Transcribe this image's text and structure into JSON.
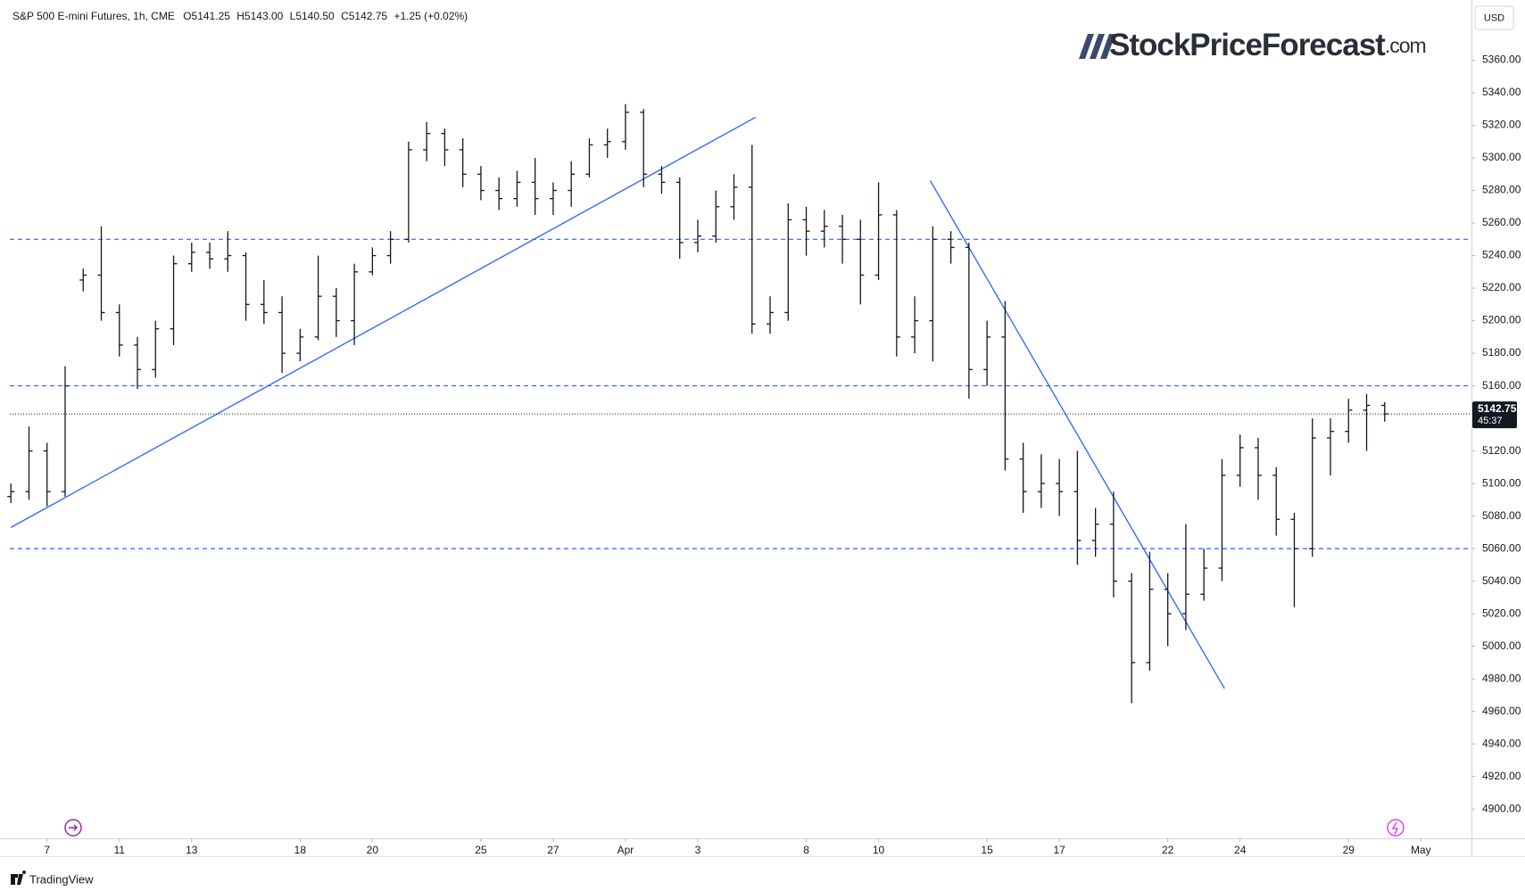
{
  "chart_data": {
    "type": "ohlc",
    "title": "S&P 500 E-mini Futures, 1h, CME",
    "header_values": [
      "O5141.25",
      "H5143.00",
      "L5140.50",
      "C5142.75"
    ],
    "change": "+1.25 (+0.02%)",
    "currency": "USD",
    "watermark": "StockPriceForecast",
    "watermark_suffix": ".com",
    "brand": "TradingView",
    "color": "#131722",
    "line_color": "#2962ff",
    "x": [
      -1,
      -0.5,
      0,
      0.5,
      1,
      1.5,
      2,
      2.5,
      3,
      3.5,
      4,
      4.5,
      5,
      5.5,
      6,
      6.5,
      7,
      7.5,
      8,
      8.5,
      9,
      9.5,
      10,
      10.5,
      11,
      11.5,
      12,
      12.5,
      13,
      13.5,
      14,
      14.5,
      15,
      15.5,
      16,
      16.5,
      17,
      17.5,
      18,
      18.5,
      19,
      19.5,
      20,
      20.5,
      21,
      21.5,
      22,
      22.5,
      23,
      23.5,
      24,
      24.5,
      25,
      25.5,
      26,
      26.5,
      27,
      27.5,
      28,
      28.5,
      29,
      29.5,
      30,
      30.5,
      31,
      31.5,
      32,
      32.5,
      33,
      33.5,
      34,
      34.5,
      35,
      35.5,
      36,
      36.5,
      37
    ],
    "open": [
      5092,
      5095,
      5120,
      5095,
      5225,
      5228,
      5205,
      5185,
      5170,
      5195,
      5235,
      5242,
      5238,
      5240,
      5210,
      5205,
      5180,
      5190,
      5215,
      5200,
      5230,
      5240,
      5250,
      5305,
      5315,
      5305,
      5290,
      5280,
      5275,
      5285,
      5275,
      5280,
      5290,
      5308,
      5310,
      5328,
      5290,
      5285,
      5248,
      5252,
      5270,
      5282,
      5198,
      5205,
      5262,
      5255,
      5258,
      5250,
      5228,
      5265,
      5190,
      5200,
      5250,
      5245,
      5170,
      5190,
      5115,
      5095,
      5100,
      5095,
      5065,
      5075,
      5040,
      4990,
      5035,
      5020,
      5032,
      5048,
      5105,
      5122,
      5105,
      5078,
      5060,
      5128,
      5132,
      5145,
      5148
    ],
    "high": [
      5100,
      5135,
      5125,
      5172,
      5232,
      5258,
      5210,
      5190,
      5200,
      5240,
      5248,
      5248,
      5255,
      5242,
      5225,
      5215,
      5195,
      5240,
      5220,
      5235,
      5245,
      5255,
      5310,
      5322,
      5318,
      5312,
      5295,
      5288,
      5292,
      5300,
      5285,
      5298,
      5312,
      5318,
      5333,
      5330,
      5295,
      5288,
      5262,
      5280,
      5290,
      5308,
      5215,
      5272,
      5270,
      5268,
      5265,
      5262,
      5285,
      5268,
      5215,
      5258,
      5255,
      5248,
      5200,
      5212,
      5125,
      5118,
      5115,
      5120,
      5085,
      5095,
      5045,
      5058,
      5045,
      5075,
      5060,
      5115,
      5130,
      5128,
      5110,
      5082,
      5140,
      5140,
      5152,
      5155,
      5150
    ],
    "low": [
      5088,
      5090,
      5086,
      5092,
      5218,
      5200,
      5178,
      5158,
      5165,
      5185,
      5230,
      5232,
      5230,
      5200,
      5198,
      5168,
      5175,
      5188,
      5190,
      5185,
      5228,
      5235,
      5248,
      5298,
      5295,
      5282,
      5274,
      5268,
      5270,
      5265,
      5265,
      5270,
      5288,
      5300,
      5305,
      5282,
      5278,
      5238,
      5242,
      5248,
      5262,
      5192,
      5192,
      5200,
      5240,
      5245,
      5235,
      5210,
      5225,
      5178,
      5180,
      5175,
      5235,
      5152,
      5160,
      5108,
      5082,
      5085,
      5080,
      5050,
      5055,
      5030,
      4965,
      4985,
      5000,
      5010,
      5028,
      5040,
      5098,
      5090,
      5068,
      5024,
      5055,
      5105,
      5125,
      5120,
      5138
    ],
    "close": [
      5095,
      5120,
      5095,
      5160,
      5228,
      5205,
      5185,
      5170,
      5195,
      5235,
      5242,
      5238,
      5240,
      5210,
      5205,
      5180,
      5190,
      5215,
      5200,
      5230,
      5240,
      5250,
      5305,
      5315,
      5305,
      5290,
      5280,
      5275,
      5285,
      5275,
      5280,
      5290,
      5308,
      5310,
      5328,
      5290,
      5285,
      5248,
      5252,
      5270,
      5282,
      5198,
      5205,
      5262,
      5255,
      5258,
      5250,
      5228,
      5265,
      5190,
      5200,
      5250,
      5245,
      5170,
      5190,
      5115,
      5095,
      5100,
      5095,
      5065,
      5075,
      5040,
      4990,
      5035,
      5020,
      5032,
      5048,
      5105,
      5122,
      5105,
      5078,
      5060,
      5128,
      5132,
      5145,
      5148,
      5142.75
    ],
    "xlim": [
      -1.03,
      39.4
    ],
    "xticks": [
      {
        "value": 0,
        "label": "7"
      },
      {
        "value": 2,
        "label": "11"
      },
      {
        "value": 4,
        "label": "13"
      },
      {
        "value": 7,
        "label": "18"
      },
      {
        "value": 9,
        "label": "20"
      },
      {
        "value": 12,
        "label": "25"
      },
      {
        "value": 14,
        "label": "27"
      },
      {
        "value": 16,
        "label": "Apr"
      },
      {
        "value": 18,
        "label": "3"
      },
      {
        "value": 21,
        "label": "8"
      },
      {
        "value": 23,
        "label": "10"
      },
      {
        "value": 26,
        "label": "15"
      },
      {
        "value": 28,
        "label": "17"
      },
      {
        "value": 31,
        "label": "22"
      },
      {
        "value": 33,
        "label": "24"
      },
      {
        "value": 36,
        "label": "29"
      },
      {
        "value": 38,
        "label": "May"
      }
    ],
    "ylim": [
      4882,
      5397
    ],
    "yticks": [
      {
        "value": 4900,
        "label": "4900.00"
      },
      {
        "value": 4920,
        "label": "4920.00"
      },
      {
        "value": 4940,
        "label": "4940.00"
      },
      {
        "value": 4960,
        "label": "4960.00"
      },
      {
        "value": 4980,
        "label": "4980.00"
      },
      {
        "value": 5000,
        "label": "5000.00"
      },
      {
        "value": 5020,
        "label": "5020.00"
      },
      {
        "value": 5040,
        "label": "5040.00"
      },
      {
        "value": 5060,
        "label": "5060.00"
      },
      {
        "value": 5080,
        "label": "5080.00"
      },
      {
        "value": 5100,
        "label": "5100.00"
      },
      {
        "value": 5120,
        "label": "5120.00"
      },
      {
        "value": 5160,
        "label": "5160.00"
      },
      {
        "value": 5180,
        "label": "5180.00"
      },
      {
        "value": 5200,
        "label": "5200.00"
      },
      {
        "value": 5220,
        "label": "5220.00"
      },
      {
        "value": 5240,
        "label": "5240.00"
      },
      {
        "value": 5260,
        "label": "5260.00"
      },
      {
        "value": 5280,
        "label": "5280.00"
      },
      {
        "value": 5300,
        "label": "5300.00"
      },
      {
        "value": 5320,
        "label": "5320.00"
      },
      {
        "value": 5340,
        "label": "5340.00"
      },
      {
        "value": 5360,
        "label": "5360.00"
      }
    ],
    "hlines": [
      5250,
      5160,
      5060
    ],
    "trendlines": [
      {
        "x": [
          -1,
          19.6
        ],
        "y": [
          5073,
          5325
        ]
      },
      {
        "x": [
          24.43,
          32.57
        ],
        "y": [
          5286,
          4974
        ]
      }
    ],
    "last_price": 5142.75,
    "countdown": "45:37"
  }
}
